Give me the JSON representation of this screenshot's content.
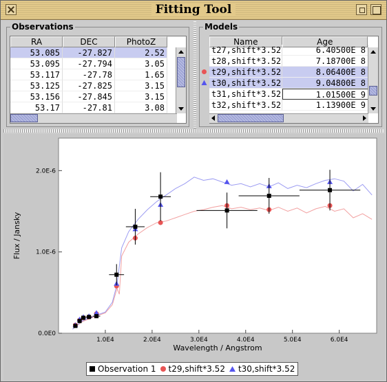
{
  "window": {
    "title": "Fitting Tool"
  },
  "observations": {
    "title": "Observations",
    "columns": [
      "RA",
      "DEC",
      "PhotoZ"
    ],
    "rows": [
      [
        "53.085",
        "-27.827",
        "2.52"
      ],
      [
        "53.095",
        "-27.794",
        "3.05"
      ],
      [
        "53.117",
        "-27.78",
        "1.65"
      ],
      [
        "53.125",
        "-27.825",
        "3.15"
      ],
      [
        "53.156",
        "-27.845",
        "3.15"
      ],
      [
        "53.17",
        "-27.81",
        "3.08"
      ]
    ],
    "selected_row": 0
  },
  "models": {
    "title": "Models",
    "columns": [
      "Name",
      "Age"
    ],
    "rows": [
      [
        "t27,shift*3.52",
        "6.40500E 8"
      ],
      [
        "t28,shift*3.52",
        "7.18700E 8"
      ],
      [
        "t29,shift*3.52",
        "8.06400E 8"
      ],
      [
        "t30,shift*3.52",
        "9.04800E 8"
      ],
      [
        "t31,shift*3.52",
        "1.01500E 9"
      ],
      [
        "t32,shift*3.52",
        "1.13900E 9"
      ]
    ],
    "selected_rows": [
      2,
      3
    ],
    "row_markers": [
      "",
      "",
      "circle",
      "triangle",
      "",
      ""
    ]
  },
  "colors": {
    "observation": "#000000",
    "t29": "#e85555",
    "t30": "#5555ee",
    "t29_line": "#f2a0a0",
    "t30_line": "#9c9cf2",
    "selection": "#c8ccf0"
  },
  "chart_data": {
    "type": "scatter",
    "xlabel": "Wavelength / Angstrom",
    "ylabel": "Flux / Jansky",
    "xlim": [
      0,
      68000
    ],
    "ylim": [
      0,
      2.4e-06
    ],
    "xticks": [
      {
        "value": 10000,
        "label": "1.0E4"
      },
      {
        "value": 20000,
        "label": "2.0E4"
      },
      {
        "value": 30000,
        "label": "3.0E4"
      },
      {
        "value": 40000,
        "label": "4.0E4"
      },
      {
        "value": 50000,
        "label": "5.0E4"
      },
      {
        "value": 60000,
        "label": "6.0E4"
      }
    ],
    "yticks": [
      {
        "value": 0,
        "label": "0.0E0"
      },
      {
        "value": 1e-06,
        "label": "1.0E-6"
      },
      {
        "value": 2e-06,
        "label": "2.0E-6"
      }
    ],
    "legend_position": "bottom",
    "series": [
      {
        "name": "Observation 1",
        "marker": "square",
        "color": "#000000",
        "points": [
          {
            "x": 3600,
            "y": 9e-08,
            "xerr": 300,
            "yerr": 0.0
          },
          {
            "x": 4500,
            "y": 1.5e-07,
            "xerr": 400,
            "yerr": 0.0
          },
          {
            "x": 5300,
            "y": 1.9e-07,
            "xerr": 500,
            "yerr": 0.0
          },
          {
            "x": 6500,
            "y": 2e-07,
            "xerr": 700,
            "yerr": 0.0
          },
          {
            "x": 8100,
            "y": 2.1e-07,
            "xerr": 800,
            "yerr": 0.0
          },
          {
            "x": 12400,
            "y": 7.2e-07,
            "xerr": 1600,
            "yerr": 1.3e-07
          },
          {
            "x": 16400,
            "y": 1.31e-06,
            "xerr": 2000,
            "yerr": 2.2e-07
          },
          {
            "x": 21800,
            "y": 1.68e-06,
            "xerr": 2200,
            "yerr": 3e-07
          },
          {
            "x": 36000,
            "y": 1.51e-06,
            "xerr": 6500,
            "yerr": 2.2e-07
          },
          {
            "x": 45000,
            "y": 1.69e-06,
            "xerr": 6500,
            "yerr": 2.2e-07
          },
          {
            "x": 58000,
            "y": 1.76e-06,
            "xerr": 6500,
            "yerr": 2.5e-07
          }
        ]
      },
      {
        "name": "t29,shift*3.52",
        "marker": "circle",
        "color": "#e85555",
        "points": [
          {
            "x": 3600,
            "y": 1e-07
          },
          {
            "x": 4500,
            "y": 1.6e-07
          },
          {
            "x": 5300,
            "y": 1.9e-07
          },
          {
            "x": 6500,
            "y": 2e-07
          },
          {
            "x": 8100,
            "y": 2.4e-07
          },
          {
            "x": 12400,
            "y": 5.8e-07
          },
          {
            "x": 16400,
            "y": 1.17e-06
          },
          {
            "x": 21800,
            "y": 1.36e-06
          },
          {
            "x": 36000,
            "y": 1.57e-06
          },
          {
            "x": 45000,
            "y": 1.52e-06
          },
          {
            "x": 58000,
            "y": 1.57e-06
          }
        ]
      },
      {
        "name": "t30,shift*3.52",
        "marker": "triangle",
        "color": "#5555ee",
        "points": [
          {
            "x": 3600,
            "y": 1e-07
          },
          {
            "x": 4500,
            "y": 1.7e-07
          },
          {
            "x": 5300,
            "y": 2e-07
          },
          {
            "x": 6500,
            "y": 2.1e-07
          },
          {
            "x": 8100,
            "y": 2.5e-07
          },
          {
            "x": 12400,
            "y": 6.1e-07
          },
          {
            "x": 16400,
            "y": 1.28e-06
          },
          {
            "x": 21800,
            "y": 1.58e-06
          },
          {
            "x": 36000,
            "y": 1.86e-06
          },
          {
            "x": 45000,
            "y": 1.81e-06
          },
          {
            "x": 58000,
            "y": 1.86e-06
          }
        ]
      }
    ],
    "spectra": [
      {
        "name": "t29,shift*3.52",
        "color": "#f2a0a0",
        "points": [
          [
            3000,
            5e-08
          ],
          [
            5000,
            1.4e-07
          ],
          [
            8000,
            2.1e-07
          ],
          [
            10000,
            2.5e-07
          ],
          [
            11500,
            3.5e-07
          ],
          [
            12500,
            5.5e-07
          ],
          [
            13000,
            4.8e-07
          ],
          [
            13500,
            9.5e-07
          ],
          [
            15000,
            1.12e-06
          ],
          [
            17000,
            1.22e-06
          ],
          [
            19000,
            1.3e-06
          ],
          [
            21000,
            1.36e-06
          ],
          [
            23000,
            1.38e-06
          ],
          [
            25000,
            1.42e-06
          ],
          [
            27000,
            1.46e-06
          ],
          [
            29000,
            1.5e-06
          ],
          [
            31000,
            1.52e-06
          ],
          [
            33000,
            1.55e-06
          ],
          [
            35000,
            1.57e-06
          ],
          [
            37000,
            1.53e-06
          ],
          [
            39000,
            1.55e-06
          ],
          [
            41000,
            1.52e-06
          ],
          [
            43000,
            1.54e-06
          ],
          [
            45000,
            1.51e-06
          ],
          [
            47000,
            1.55e-06
          ],
          [
            49000,
            1.5e-06
          ],
          [
            51000,
            1.54e-06
          ],
          [
            53000,
            1.48e-06
          ],
          [
            55000,
            1.53e-06
          ],
          [
            57000,
            1.56e-06
          ],
          [
            59000,
            1.5e-06
          ],
          [
            61000,
            1.53e-06
          ],
          [
            63000,
            1.42e-06
          ],
          [
            65000,
            1.47e-06
          ],
          [
            67000,
            1.4e-06
          ]
        ]
      },
      {
        "name": "t30,shift*3.52",
        "color": "#9c9cf2",
        "points": [
          [
            3000,
            5e-08
          ],
          [
            5000,
            1.5e-07
          ],
          [
            8000,
            2.2e-07
          ],
          [
            10000,
            2.6e-07
          ],
          [
            11500,
            3.8e-07
          ],
          [
            12500,
            6e-07
          ],
          [
            13500,
            1.05e-06
          ],
          [
            15000,
            1.25e-06
          ],
          [
            17000,
            1.4e-06
          ],
          [
            19000,
            1.52e-06
          ],
          [
            21000,
            1.62e-06
          ],
          [
            23000,
            1.7e-06
          ],
          [
            25000,
            1.78e-06
          ],
          [
            27000,
            1.84e-06
          ],
          [
            29000,
            1.92e-06
          ],
          [
            31000,
            1.88e-06
          ],
          [
            33000,
            1.9e-06
          ],
          [
            35000,
            1.86e-06
          ],
          [
            37000,
            1.82e-06
          ],
          [
            39000,
            1.84e-06
          ],
          [
            41000,
            1.8e-06
          ],
          [
            43000,
            1.84e-06
          ],
          [
            45000,
            1.8e-06
          ],
          [
            47000,
            1.85e-06
          ],
          [
            49000,
            1.78e-06
          ],
          [
            51000,
            1.82e-06
          ],
          [
            53000,
            1.79e-06
          ],
          [
            55000,
            1.84e-06
          ],
          [
            57000,
            1.88e-06
          ],
          [
            59000,
            1.9e-06
          ],
          [
            61000,
            1.87e-06
          ],
          [
            63000,
            1.75e-06
          ],
          [
            65000,
            1.83e-06
          ],
          [
            67000,
            1.7e-06
          ]
        ]
      }
    ]
  },
  "legend": {
    "items": [
      {
        "label": "Observation 1",
        "marker": "square"
      },
      {
        "label": "t29,shift*3.52",
        "marker": "circle"
      },
      {
        "label": "t30,shift*3.52",
        "marker": "triangle"
      }
    ]
  }
}
